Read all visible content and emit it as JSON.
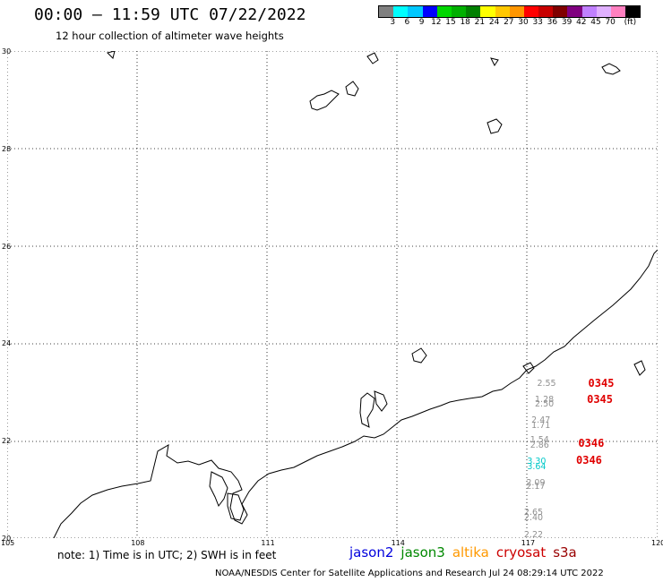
{
  "header": {
    "title": "00:00 — 11:59 UTC 07/22/2022",
    "subtitle": "12 hour collection of altimeter wave heights"
  },
  "colorbar": {
    "colors": [
      "#808080",
      "#00ffff",
      "#00c8ff",
      "#0000ff",
      "#00d700",
      "#00b000",
      "#008000",
      "#ffff00",
      "#ffc800",
      "#ff9600",
      "#ff0000",
      "#c80000",
      "#800000",
      "#800080",
      "#c080ff",
      "#e0b0ff",
      "#ff80c0",
      "#000000"
    ],
    "labels": [
      "3",
      "6",
      "9",
      "12",
      "15",
      "18",
      "21",
      "24",
      "27",
      "30",
      "33",
      "36",
      "39",
      "42",
      "45",
      "70",
      "(ft)"
    ]
  },
  "axes": {
    "lat_labels": [
      "30",
      "28",
      "26",
      "24",
      "22",
      "20"
    ],
    "lon_labels": [
      "105",
      "108",
      "111",
      "114",
      "117",
      "120"
    ],
    "lat_range": [
      20,
      30
    ],
    "lon_range": [
      105,
      120
    ]
  },
  "observations": [
    {
      "text": "2.55",
      "color": "#909090",
      "lon": 117.22,
      "lat": 23.17
    },
    {
      "text": "1.28",
      "color": "#909090",
      "lon": 117.17,
      "lat": 22.84
    },
    {
      "text": "2.50",
      "color": "#909090",
      "lon": 117.17,
      "lat": 22.74
    },
    {
      "text": "2.47",
      "color": "#909090",
      "lon": 117.09,
      "lat": 22.41
    },
    {
      "text": "1.71",
      "color": "#909090",
      "lon": 117.09,
      "lat": 22.29
    },
    {
      "text": "1.54",
      "color": "#909090",
      "lon": 117.06,
      "lat": 22.01
    },
    {
      "text": "2.86",
      "color": "#909090",
      "lon": 117.06,
      "lat": 21.9
    },
    {
      "text": "3.30",
      "color": "#00c8c8",
      "lon": 116.99,
      "lat": 21.56
    },
    {
      "text": "3.64",
      "color": "#00c8c8",
      "lon": 116.99,
      "lat": 21.46
    },
    {
      "text": "2.09",
      "color": "#909090",
      "lon": 116.97,
      "lat": 21.12
    },
    {
      "text": "2.17",
      "color": "#909090",
      "lon": 116.97,
      "lat": 21.05
    },
    {
      "text": "2.65",
      "color": "#909090",
      "lon": 116.92,
      "lat": 20.51
    },
    {
      "text": "2.40",
      "color": "#909090",
      "lon": 116.92,
      "lat": 20.41
    },
    {
      "text": "2.22",
      "color": "#909090",
      "lon": 116.92,
      "lat": 20.05
    }
  ],
  "passes": [
    {
      "text": "0345",
      "lon": 118.4,
      "lat": 23.18
    },
    {
      "text": "0345",
      "lon": 118.37,
      "lat": 22.85
    },
    {
      "text": "0346",
      "lon": 118.17,
      "lat": 21.95
    },
    {
      "text": "0346",
      "lon": 118.12,
      "lat": 21.6
    }
  ],
  "note": "note: 1) Time is in UTC; 2) SWH is in feet",
  "legend": [
    {
      "label": "jason2",
      "color": "#0000dd"
    },
    {
      "label": "jason3",
      "color": "#008800"
    },
    {
      "label": "altika",
      "color": "#ff9900"
    },
    {
      "label": "cryosat",
      "color": "#cc0000"
    },
    {
      "label": "s3a",
      "color": "#990000"
    }
  ],
  "footer": "NOAA/NESDIS Center for Satellite Applications and Research    Jul 24 08:29:14 UTC 2022"
}
